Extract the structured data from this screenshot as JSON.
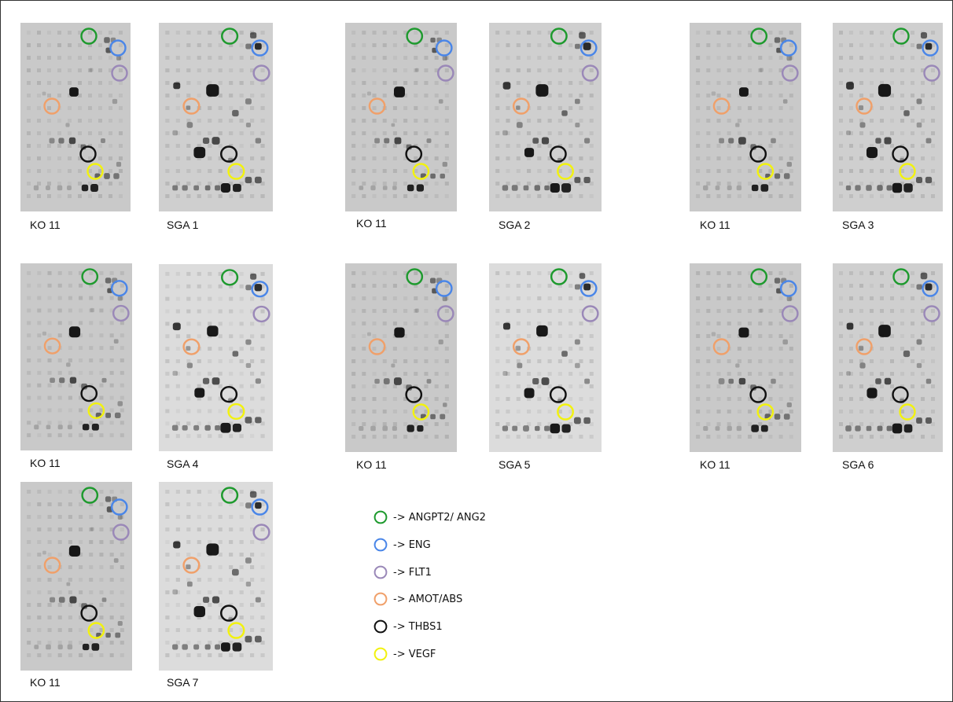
{
  "colors": {
    "ANGPT2": "#1e9a2e",
    "ENG": "#4a86e8",
    "FLT1": "#9a88b8",
    "AMOT": "#f0a06a",
    "THBS1": "#111111",
    "VEGF": "#f2f20e"
  },
  "legend": [
    {
      "key": "ANGPT2",
      "text": "-> ANGPT2/ ANG2"
    },
    {
      "key": "ENG",
      "text": "-> ENG"
    },
    {
      "key": "FLT1",
      "text": "-> FLT1"
    },
    {
      "key": "AMOT",
      "text": "-> AMOT/ABS"
    },
    {
      "key": "THBS1",
      "text": "-> THBS1"
    },
    {
      "key": "VEGF",
      "text": "-> VEGF"
    }
  ],
  "panels": [
    {
      "label": "KO 11",
      "kind": "ko"
    },
    {
      "label": "SGA 1",
      "kind": "sga"
    },
    {
      "label": "KO 11",
      "kind": "ko"
    },
    {
      "label": "SGA 2",
      "kind": "sga"
    },
    {
      "label": "KO 11",
      "kind": "ko"
    },
    {
      "label": "SGA 3",
      "kind": "sga"
    },
    {
      "label": "KO 11",
      "kind": "ko"
    },
    {
      "label": "SGA 4",
      "kind": "sga"
    },
    {
      "label": "KO 11",
      "kind": "ko"
    },
    {
      "label": "SGA 5",
      "kind": "sga"
    },
    {
      "label": "KO 11",
      "kind": "ko"
    },
    {
      "label": "SGA 6",
      "kind": "sga"
    },
    {
      "label": "KO 11",
      "kind": "ko"
    },
    {
      "label": "SGA 7",
      "kind": "sga"
    }
  ]
}
